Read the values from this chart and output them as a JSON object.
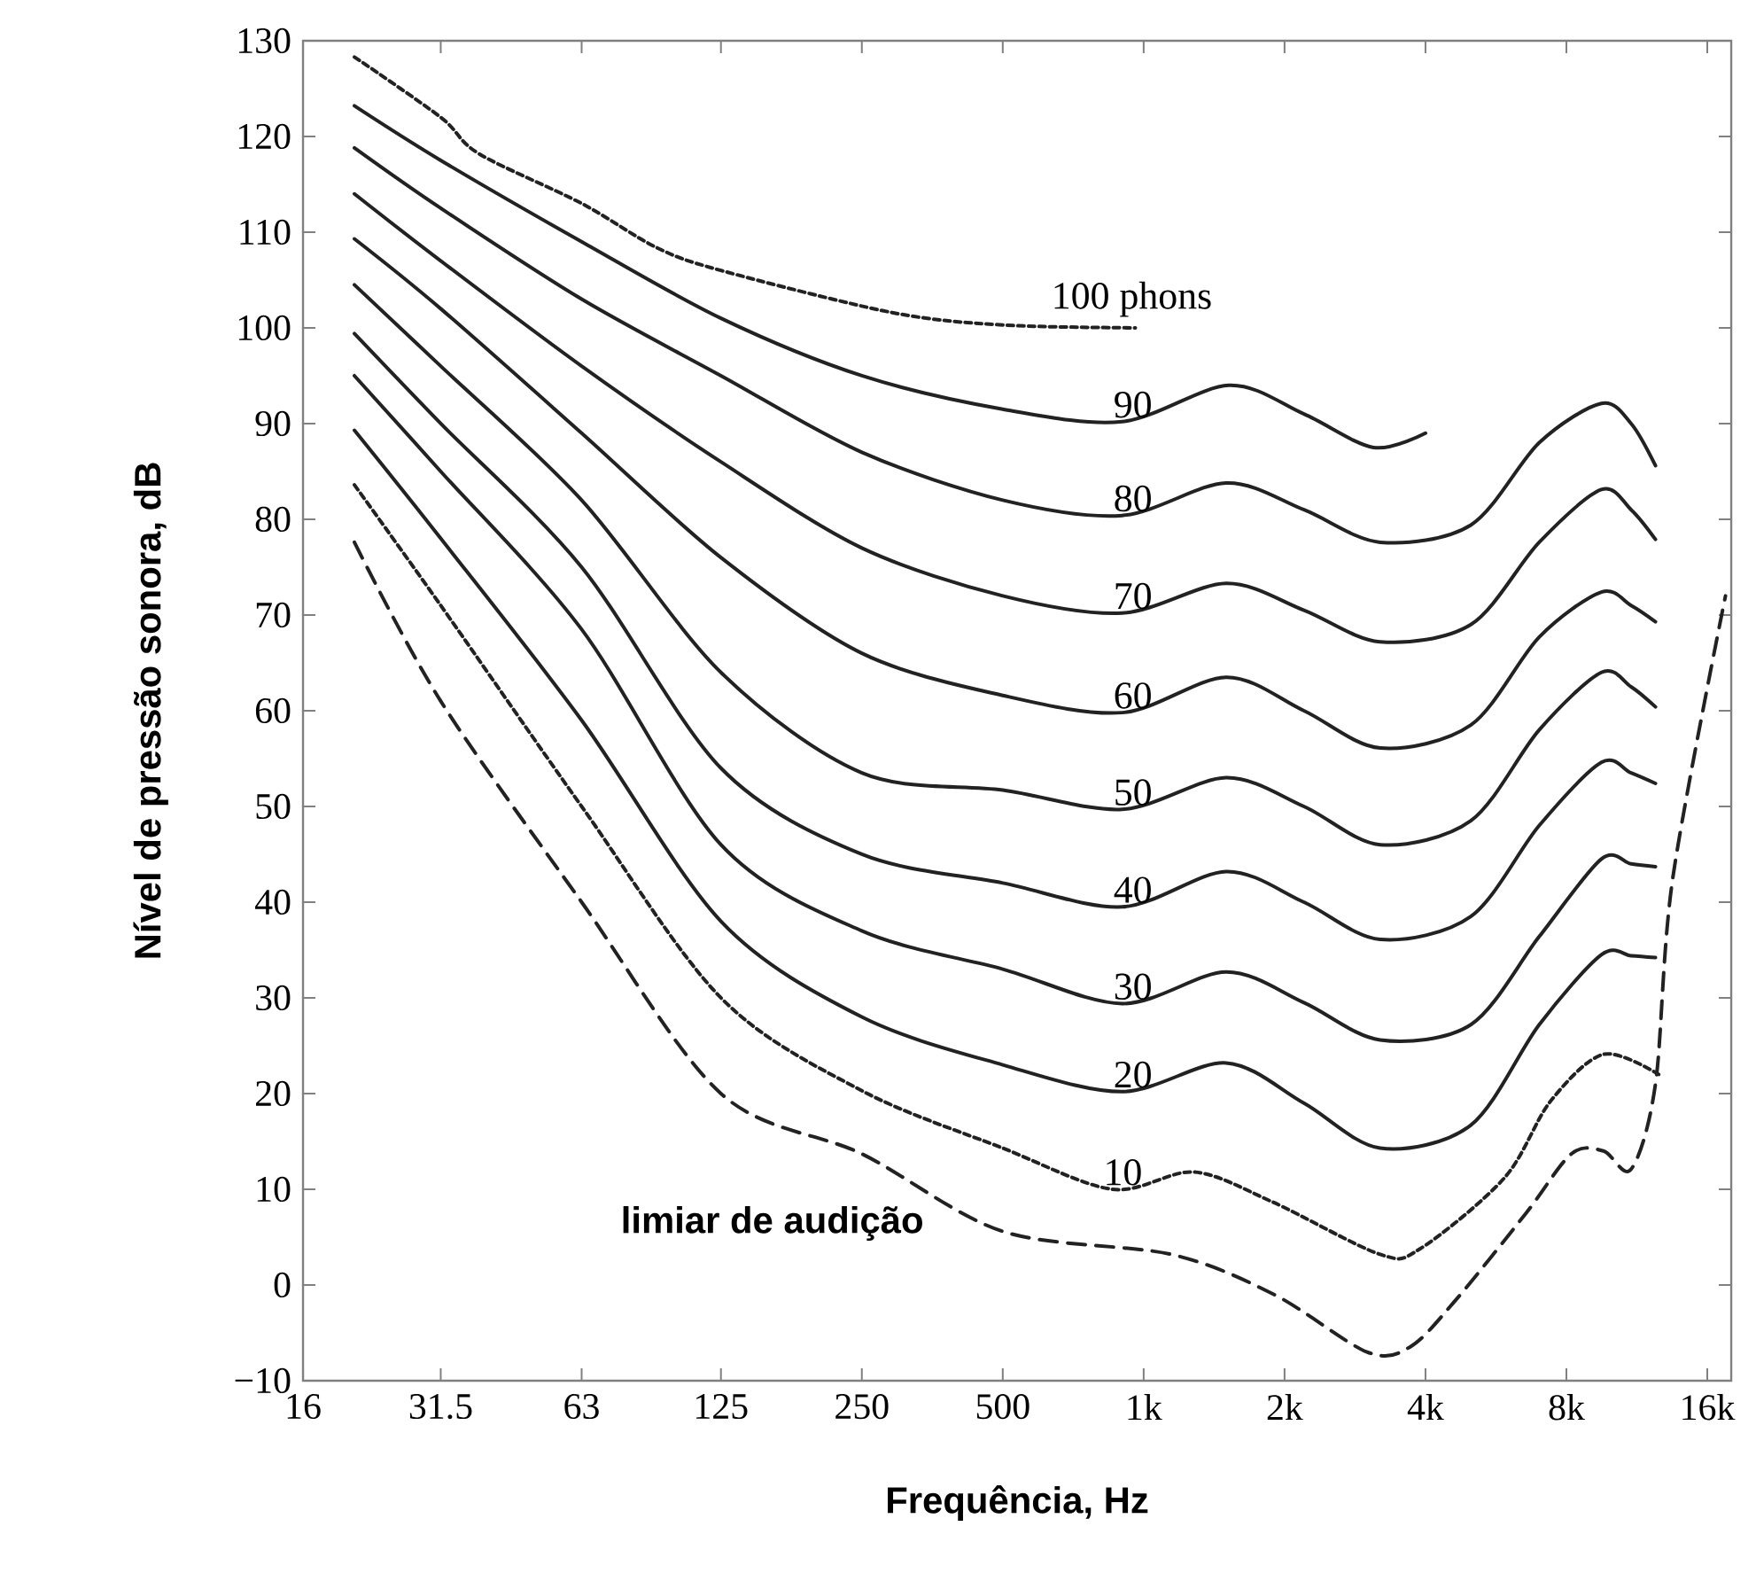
{
  "chart_data": {
    "type": "line",
    "xlabel": "Frequência, Hz",
    "ylabel": "Nível de pressão sonora, dB",
    "log": "x",
    "xlim": [
      16,
      18000
    ],
    "ylim": [
      -10,
      130
    ],
    "xticks": [
      16,
      31.5,
      63,
      125,
      250,
      500,
      {
        "value": 1000,
        "label": "1k"
      },
      {
        "value": 2000,
        "label": "2k"
      },
      {
        "value": 4000,
        "label": "4k"
      },
      {
        "value": 8000,
        "label": "8k"
      },
      {
        "value": 16000,
        "label": "16k"
      }
    ],
    "yticks": [
      {
        "value": -10,
        "label": "−10"
      },
      0,
      10,
      20,
      30,
      40,
      50,
      60,
      70,
      80,
      90,
      100,
      110,
      120,
      130
    ],
    "series": [
      {
        "name": "100 phons",
        "color": "#222222",
        "line_style": "dotted",
        "x": [
          20.6,
          31.5,
          38,
          63,
          91,
          125,
          290,
          500,
          960
        ],
        "values": [
          128.3,
          122,
          118.2,
          113,
          108.4,
          106,
          101.6,
          100.3,
          100
        ]
      },
      {
        "name": "90",
        "color": "#222222",
        "line_style": "solid",
        "x": [
          20.6,
          31.5,
          63,
          125,
          250,
          500,
          900,
          1520,
          2200,
          3100,
          4000
        ],
        "values": [
          123.2,
          117.5,
          109,
          101,
          95,
          91.5,
          90.2,
          94,
          91,
          87.5,
          89
        ]
      },
      {
        "color": "#222222",
        "line_style": "solid",
        "x": [
          20.6,
          31.5,
          63,
          125,
          250,
          500,
          900,
          1500,
          2200,
          3200,
          5000,
          7000,
          9500,
          11000,
          12400
        ],
        "name": "80",
        "values": [
          118.8,
          112.5,
          103,
          95,
          87,
          82,
          80.4,
          83.8,
          81,
          77.6,
          79.4,
          88,
          92.1,
          90,
          85.6
        ]
      },
      {
        "color": "#222222",
        "line_style": "solid",
        "x": [
          20.6,
          31.5,
          63,
          125,
          250,
          500,
          900,
          1500,
          2200,
          3200,
          5000,
          7000,
          9500,
          11000,
          12400
        ],
        "name": "70",
        "values": [
          114,
          107,
          96,
          86,
          77,
          72,
          70.2,
          73.3,
          70.5,
          67.2,
          69,
          77.6,
          83.1,
          81,
          77.9
        ]
      },
      {
        "color": "#222222",
        "line_style": "solid",
        "x": [
          20.6,
          31.5,
          63,
          125,
          250,
          500,
          900,
          1500,
          2200,
          3200,
          5000,
          7000,
          9500,
          11000,
          12400
        ],
        "name": "60",
        "values": [
          109.3,
          102,
          89,
          76,
          66,
          61.6,
          59.8,
          63.5,
          60,
          56.1,
          58.5,
          67.7,
          72.4,
          71,
          69.3
        ]
      },
      {
        "color": "#222222",
        "line_style": "solid",
        "x": [
          20.6,
          31.5,
          63,
          125,
          250,
          500,
          900,
          1500,
          2200,
          3200,
          5000,
          7000,
          9500,
          11000,
          12400
        ],
        "name": "50",
        "values": [
          104.5,
          96,
          82,
          64,
          53.5,
          51.7,
          49.7,
          53,
          50,
          46,
          48.5,
          58,
          64,
          62.5,
          60.4
        ]
      },
      {
        "color": "#222222",
        "line_style": "solid",
        "x": [
          20.6,
          31.5,
          63,
          125,
          250,
          500,
          900,
          1500,
          2200,
          3200,
          5000,
          7000,
          9500,
          11000,
          12400
        ],
        "name": "40",
        "values": [
          99.4,
          90,
          75,
          54,
          45,
          42,
          39.5,
          43.2,
          40,
          36.1,
          38.5,
          48,
          54.6,
          53.5,
          52.4
        ]
      },
      {
        "color": "#222222",
        "line_style": "solid",
        "x": [
          20.6,
          31.5,
          63,
          125,
          250,
          500,
          900,
          1500,
          2200,
          3200,
          5000,
          7000,
          9500,
          11000,
          12400
        ],
        "name": "30",
        "values": [
          95,
          85,
          68.5,
          46,
          37,
          33,
          29.4,
          32.7,
          29.5,
          25.6,
          27.2,
          36.4,
          44.5,
          44,
          43.7
        ]
      },
      {
        "color": "#222222",
        "line_style": "solid",
        "x": [
          20.6,
          31.5,
          63,
          125,
          250,
          500,
          900,
          1500,
          2200,
          3200,
          5000,
          7000,
          9500,
          11000,
          12400
        ],
        "name": "20",
        "values": [
          89.3,
          78,
          59,
          38,
          28,
          23,
          20.2,
          23.2,
          19,
          14.3,
          16.7,
          27.2,
          34.5,
          34.4,
          34.2
        ]
      },
      {
        "color": "#222222",
        "line_style": "dotted",
        "x": [
          20.6,
          31.5,
          63,
          125,
          250,
          500,
          857,
          1280,
          1880,
          3200,
          3900,
          5900,
          7400,
          9600,
          12600
        ],
        "name": "10",
        "values": [
          83.6,
          71,
          50,
          30,
          20.3,
          14.3,
          10,
          11.8,
          8.7,
          3.2,
          3.8,
          11.2,
          19.2,
          24.1,
          22
        ]
      },
      {
        "color": "#222222",
        "line_style": "dashed",
        "x": [
          20.6,
          31.5,
          63,
          125,
          250,
          500,
          1144,
          1900,
          3000,
          3700,
          4600,
          6560,
          8200,
          9600,
          11000,
          12400,
          13500,
          17500
        ],
        "name": "limiar de audição",
        "values": [
          77.6,
          61,
          40,
          20,
          13.7,
          5.6,
          3.2,
          -1,
          -7,
          -6.5,
          -1.8,
          7.5,
          13.7,
          14,
          12.1,
          21,
          42.5,
          72
        ]
      }
    ],
    "legend": false
  }
}
